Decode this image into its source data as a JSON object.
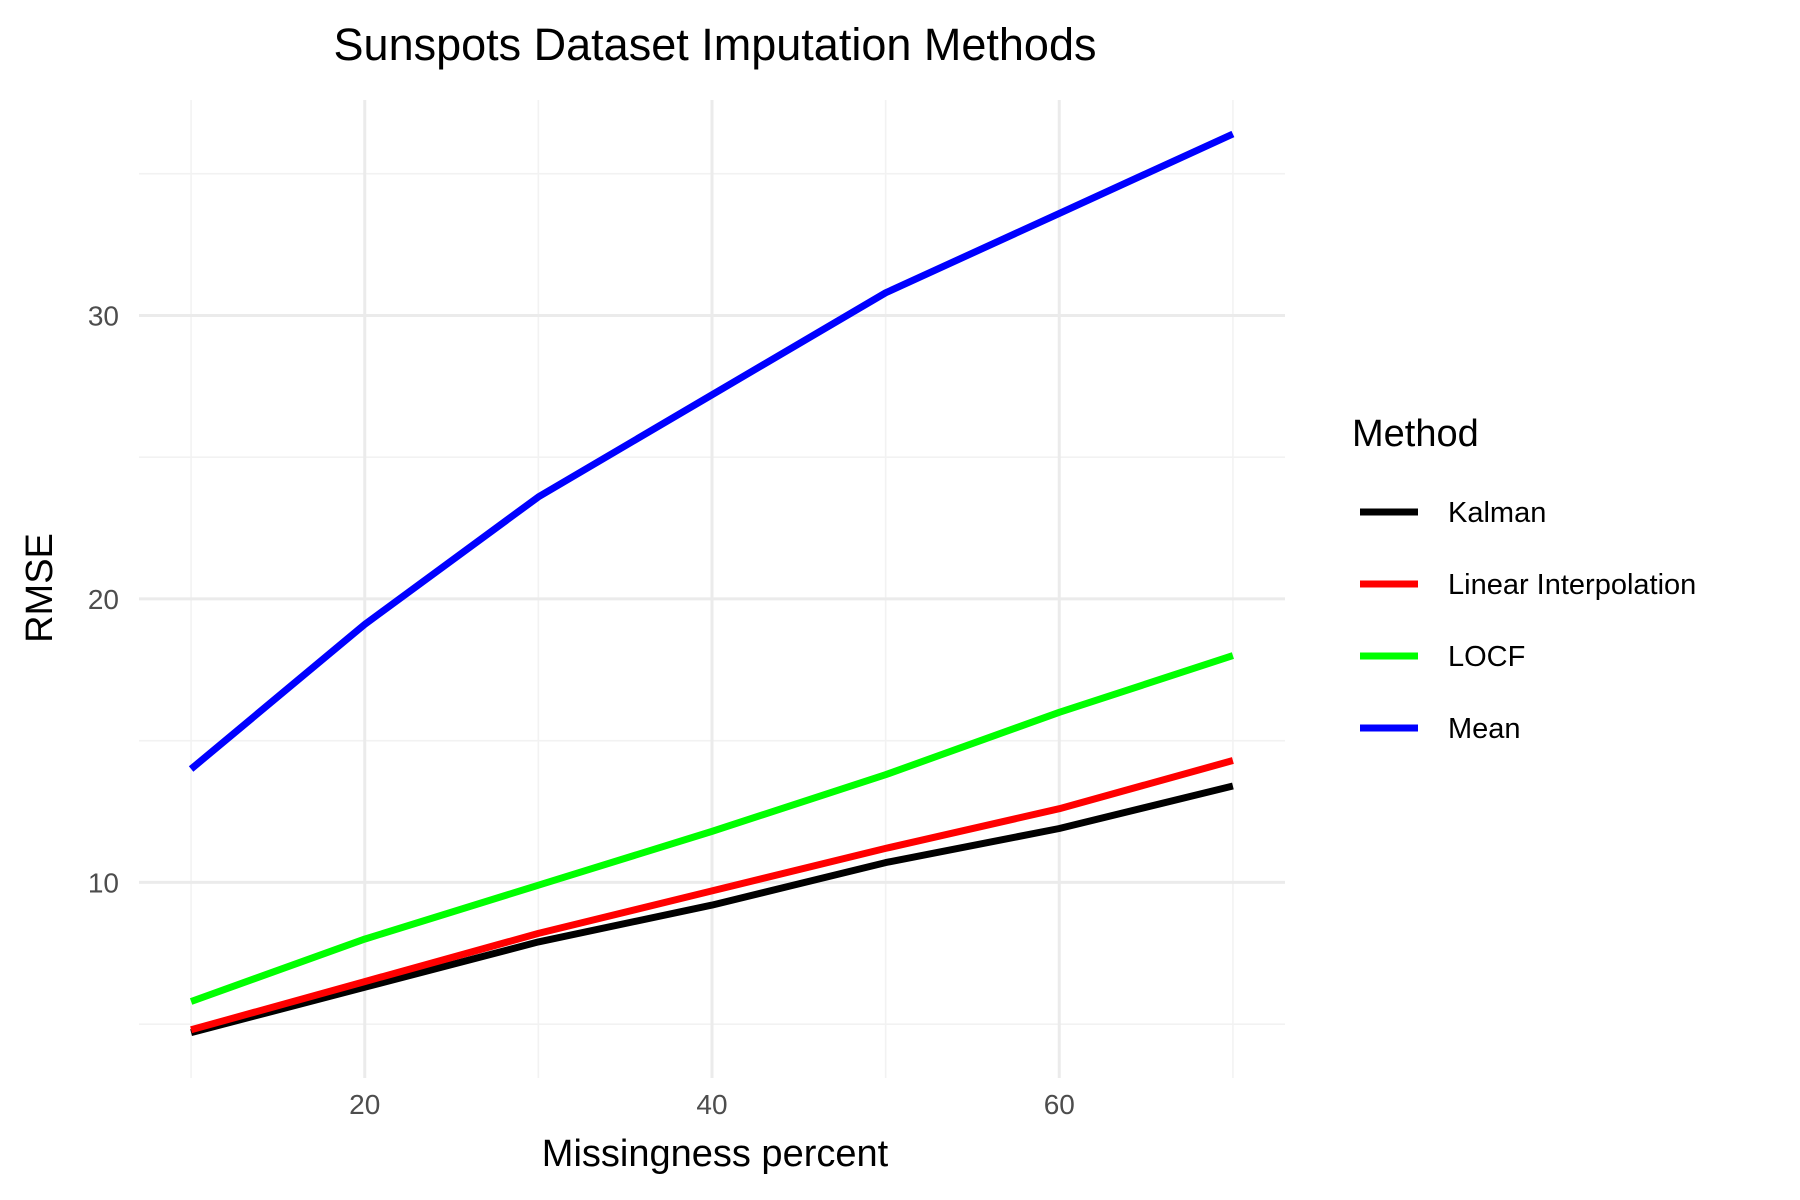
{
  "chart_data": {
    "type": "line",
    "title": "Sunspots Dataset Imputation Methods",
    "xlabel": "Missingness percent",
    "ylabel": "RMSE",
    "x": [
      10,
      20,
      30,
      40,
      50,
      60,
      70
    ],
    "xlim": [
      7,
      73
    ],
    "ylim": [
      3.1,
      37.6
    ],
    "x_ticks": [
      20,
      40,
      60
    ],
    "x_minor_ticks": [
      10,
      30,
      50,
      70
    ],
    "y_ticks": [
      10,
      20,
      30
    ],
    "y_minor_ticks": [
      5,
      15,
      25,
      35
    ],
    "grid": true,
    "legend": {
      "title": "Method",
      "position": "right"
    },
    "series": [
      {
        "name": "Kalman",
        "color": "#000000",
        "values": [
          4.7,
          6.3,
          7.9,
          9.2,
          10.7,
          11.9,
          13.4
        ]
      },
      {
        "name": "Linear Interpolation",
        "color": "#ff0000",
        "values": [
          4.8,
          6.5,
          8.2,
          9.7,
          11.2,
          12.6,
          14.3
        ]
      },
      {
        "name": "LOCF",
        "color": "#00ff00",
        "values": [
          5.8,
          8.0,
          9.9,
          11.8,
          13.8,
          16.0,
          18.0
        ]
      },
      {
        "name": "Mean",
        "color": "#0000ff",
        "values": [
          14.0,
          19.1,
          23.6,
          27.2,
          30.8,
          33.6,
          36.4
        ]
      }
    ]
  }
}
